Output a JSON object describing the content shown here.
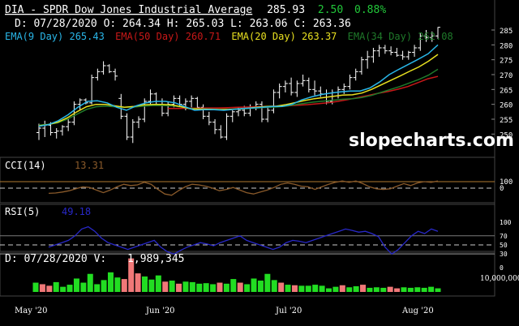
{
  "header": {
    "title": "DIA - SPDR Dow Jones Industrial Average",
    "last": "285.93",
    "change": "2.50",
    "change_pct": "0.88%",
    "ohlc_line": "D: 07/28/2020 O: 264.34 H: 265.03 L: 263.06 C: 263.36"
  },
  "ema_labels": [
    {
      "text": "EMA(9 Day) 265.43",
      "color": "#29b6e8"
    },
    {
      "text": "EMA(50 Day) 260.71",
      "color": "#c81818"
    },
    {
      "text": "EMA(20 Day) 263.37",
      "color": "#e8e020"
    },
    {
      "text": "EMA(34 Day) 262.08",
      "color": "#1f7a2a"
    }
  ],
  "watermark": "slopecharts.com",
  "cci_panel": {
    "label": "CCI(14)",
    "value": "13.31",
    "ticks": [
      "100",
      "0"
    ],
    "color": "#8a5a2a"
  },
  "rsi_panel": {
    "label": "RSI(5)",
    "value": "49.18",
    "ticks": [
      "100",
      "70",
      "50",
      "30",
      "0"
    ],
    "color": "#2828c8"
  },
  "volume_panel": {
    "label": "D: 07/28/2020 V:",
    "value": "1,989,345",
    "tick": "10,000,000"
  },
  "chart_data": {
    "type": "candlestick",
    "price_ticks": [
      285,
      280,
      275,
      270,
      265,
      260,
      255,
      250
    ],
    "ylim": [
      246,
      288
    ],
    "x_labels": [
      "May '20",
      "Jun '20",
      "Jul '20",
      "Aug '20"
    ],
    "bars": [
      [
        250.5,
        253.5,
        248,
        252
      ],
      [
        252,
        254.5,
        249,
        253
      ],
      [
        253,
        254,
        249.5,
        250.5
      ],
      [
        250.5,
        252,
        248.5,
        251
      ],
      [
        251,
        253,
        249.5,
        252.5
      ],
      [
        252.5,
        255,
        251,
        254
      ],
      [
        254,
        261,
        253,
        260
      ],
      [
        260,
        262,
        258,
        261.5
      ],
      [
        261.5,
        262,
        260,
        260.5
      ],
      [
        260.5,
        270,
        260,
        269
      ],
      [
        269,
        272,
        268,
        271
      ],
      [
        271,
        274.5,
        270,
        273
      ],
      [
        273,
        273.5,
        270.5,
        271
      ],
      [
        271,
        272,
        268,
        269.5
      ],
      [
        262,
        263.5,
        255,
        256
      ],
      [
        256,
        257,
        248,
        249
      ],
      [
        249,
        255,
        247,
        254
      ],
      [
        254,
        256,
        252,
        255
      ],
      [
        255,
        262,
        254,
        261
      ],
      [
        261,
        265,
        260,
        263.5
      ],
      [
        263.5,
        264,
        260,
        261
      ],
      [
        261,
        262,
        256,
        257
      ],
      [
        257,
        261,
        256,
        260
      ],
      [
        260,
        263,
        259,
        262
      ],
      [
        262,
        263,
        259,
        260
      ],
      [
        260,
        262,
        258,
        261
      ],
      [
        261,
        263,
        259,
        262
      ],
      [
        262,
        262.5,
        258,
        259
      ],
      [
        259,
        260,
        255,
        256
      ],
      [
        256,
        257.5,
        253,
        254
      ],
      [
        254,
        255,
        250,
        251.5
      ],
      [
        251.5,
        253,
        248.5,
        249
      ],
      [
        249,
        257,
        248,
        256
      ],
      [
        256,
        258,
        254,
        257.5
      ],
      [
        257.5,
        259,
        256,
        258
      ],
      [
        258,
        259.5,
        256,
        257
      ],
      [
        257,
        260,
        256,
        259
      ],
      [
        259,
        261,
        258,
        260
      ],
      [
        260,
        261,
        254,
        255
      ],
      [
        255,
        259,
        254,
        258
      ],
      [
        258,
        265,
        257,
        264
      ],
      [
        264,
        267,
        262,
        266
      ],
      [
        266,
        268,
        264,
        267
      ],
      [
        267,
        269,
        263,
        264
      ],
      [
        264,
        268,
        262.5,
        267
      ],
      [
        267,
        270,
        266,
        268
      ],
      [
        268,
        269,
        264,
        265
      ],
      [
        265,
        268,
        263,
        264.5
      ],
      [
        264.5,
        266,
        262.5,
        263.5
      ],
      [
        263.5,
        265,
        260,
        261
      ],
      [
        261,
        265,
        260,
        264
      ],
      [
        264,
        266,
        262,
        265
      ],
      [
        265,
        267,
        263.5,
        266
      ],
      [
        266,
        270,
        265,
        269
      ],
      [
        269,
        272,
        268,
        271
      ],
      [
        271,
        276,
        270,
        275
      ],
      [
        275,
        278,
        272,
        276
      ],
      [
        276,
        279,
        274,
        278
      ],
      [
        278,
        280,
        276,
        279
      ],
      [
        279,
        280,
        277,
        278
      ],
      [
        278,
        279.5,
        276.5,
        277.5
      ],
      [
        277.5,
        279,
        276,
        276.5
      ],
      [
        276.5,
        278,
        275,
        276
      ],
      [
        276,
        278,
        275,
        277.5
      ],
      [
        277.5,
        280,
        276,
        279
      ],
      [
        279,
        284,
        278,
        283
      ],
      [
        283,
        285,
        281,
        282.5
      ],
      [
        282.5,
        284.5,
        281,
        283
      ],
      [
        283,
        286,
        282,
        285.9
      ]
    ],
    "ema9": [
      252.6,
      253.2,
      254.5,
      256.5,
      259,
      261,
      261.2,
      260.5,
      259,
      258,
      259.5,
      260.5,
      261,
      261,
      260.5,
      259.2,
      258,
      258.2,
      258.2,
      258,
      258.3,
      258.6,
      258.8,
      259,
      259.3,
      259.3,
      260,
      261.5,
      262.5,
      263.3,
      263.8,
      264.2,
      264.5,
      264.5,
      265.5,
      267.5,
      270,
      271.8,
      273.5,
      275.2,
      277,
      280
    ],
    "ema20": [
      252.8,
      253.2,
      254,
      255.5,
      257.5,
      259.2,
      260,
      260,
      259.5,
      259,
      259.3,
      259.8,
      260,
      260,
      259.8,
      259.2,
      258.5,
      258.4,
      258.3,
      258.2,
      258.3,
      258.5,
      258.7,
      259,
      259.3,
      259.4,
      259.9,
      260.6,
      261.3,
      261.9,
      262.3,
      262.7,
      263.1,
      263.2,
      263.8,
      265,
      266.5,
      268,
      269.5,
      271.1,
      272.6,
      274.5,
      276.8
    ],
    "ema34": [
      253,
      253.3,
      253.8,
      255,
      256.7,
      258.3,
      259.2,
      259.4,
      259.2,
      259,
      259.1,
      259.4,
      259.6,
      259.6,
      259.5,
      259.1,
      258.6,
      258.5,
      258.4,
      258.3,
      258.3,
      258.4,
      258.6,
      258.8,
      259,
      259.1,
      259.4,
      259.9,
      260.4,
      260.8,
      261.1,
      261.4,
      261.7,
      261.9,
      262.3,
      263,
      264,
      265,
      266,
      267.2,
      268.4,
      269.8,
      271.8
    ],
    "ema50": [
      258.6,
      258.6,
      258.7,
      258.7,
      258.8,
      258.8,
      258.9,
      259,
      259.1,
      259.2,
      259.3,
      259.4,
      259.5,
      259.7,
      259.9,
      260.2,
      260.5,
      261,
      261.6,
      262.3,
      263,
      263.7,
      264.3,
      265.1,
      266,
      267.3,
      268.6,
      269.4
    ],
    "cci": [
      -80,
      -75,
      -60,
      -40,
      -10,
      20,
      10,
      -30,
      -70,
      -30,
      20,
      60,
      40,
      50,
      90,
      60,
      -20,
      -90,
      -110,
      -40,
      20,
      60,
      50,
      30,
      0,
      -40,
      -20,
      10,
      -30,
      -70,
      -90,
      -60,
      -30,
      10,
      60,
      80,
      60,
      30,
      20,
      -20,
      20,
      60,
      90,
      110,
      90,
      110,
      70,
      20,
      -10,
      -20,
      -10,
      30,
      70,
      40,
      80,
      100,
      90,
      110
    ],
    "rsi": [
      45,
      50,
      55,
      60,
      70,
      85,
      90,
      80,
      65,
      55,
      50,
      45,
      40,
      45,
      50,
      55,
      60,
      45,
      35,
      30,
      38,
      45,
      50,
      55,
      52,
      48,
      55,
      60,
      65,
      70,
      60,
      55,
      50,
      45,
      40,
      45,
      55,
      60,
      58,
      55,
      60,
      65,
      70,
      75,
      80,
      85,
      82,
      78,
      80,
      75,
      68,
      45,
      30,
      40,
      55,
      70,
      80,
      75,
      85,
      80
    ],
    "volume": [
      [
        1.8,
        "g"
      ],
      [
        1.5,
        "r"
      ],
      [
        1.2,
        "r"
      ],
      [
        1.9,
        "g"
      ],
      [
        1.0,
        "g"
      ],
      [
        1.4,
        "g"
      ],
      [
        2.6,
        "g"
      ],
      [
        1.8,
        "g"
      ],
      [
        3.5,
        "g"
      ],
      [
        1.5,
        "g"
      ],
      [
        2.3,
        "g"
      ],
      [
        3.8,
        "g"
      ],
      [
        2.8,
        "g"
      ],
      [
        2.5,
        "r"
      ],
      [
        6.5,
        "r"
      ],
      [
        3.6,
        "r"
      ],
      [
        3.0,
        "g"
      ],
      [
        2.4,
        "g"
      ],
      [
        3.2,
        "g"
      ],
      [
        2.0,
        "r"
      ],
      [
        2.2,
        "g"
      ],
      [
        1.6,
        "r"
      ],
      [
        2.0,
        "g"
      ],
      [
        1.9,
        "g"
      ],
      [
        1.6,
        "g"
      ],
      [
        1.7,
        "g"
      ],
      [
        1.5,
        "g"
      ],
      [
        1.8,
        "r"
      ],
      [
        1.6,
        "g"
      ],
      [
        2.5,
        "g"
      ],
      [
        1.8,
        "r"
      ],
      [
        1.5,
        "g"
      ],
      [
        2.6,
        "g"
      ],
      [
        2.2,
        "g"
      ],
      [
        3.5,
        "g"
      ],
      [
        2.3,
        "g"
      ],
      [
        1.8,
        "r"
      ],
      [
        1.4,
        "g"
      ],
      [
        1.3,
        "r"
      ],
      [
        1.2,
        "g"
      ],
      [
        1.2,
        "g"
      ],
      [
        1.4,
        "g"
      ],
      [
        1.2,
        "g"
      ],
      [
        0.7,
        "g"
      ],
      [
        1.0,
        "g"
      ],
      [
        1.3,
        "r"
      ],
      [
        0.9,
        "g"
      ],
      [
        1.1,
        "g"
      ],
      [
        1.4,
        "r"
      ],
      [
        0.8,
        "g"
      ],
      [
        0.9,
        "g"
      ],
      [
        0.8,
        "g"
      ],
      [
        1.0,
        "r"
      ],
      [
        0.7,
        "r"
      ],
      [
        0.9,
        "g"
      ],
      [
        0.8,
        "g"
      ],
      [
        0.9,
        "g"
      ],
      [
        0.8,
        "g"
      ],
      [
        1.0,
        "g"
      ],
      [
        0.7,
        "g"
      ]
    ]
  }
}
